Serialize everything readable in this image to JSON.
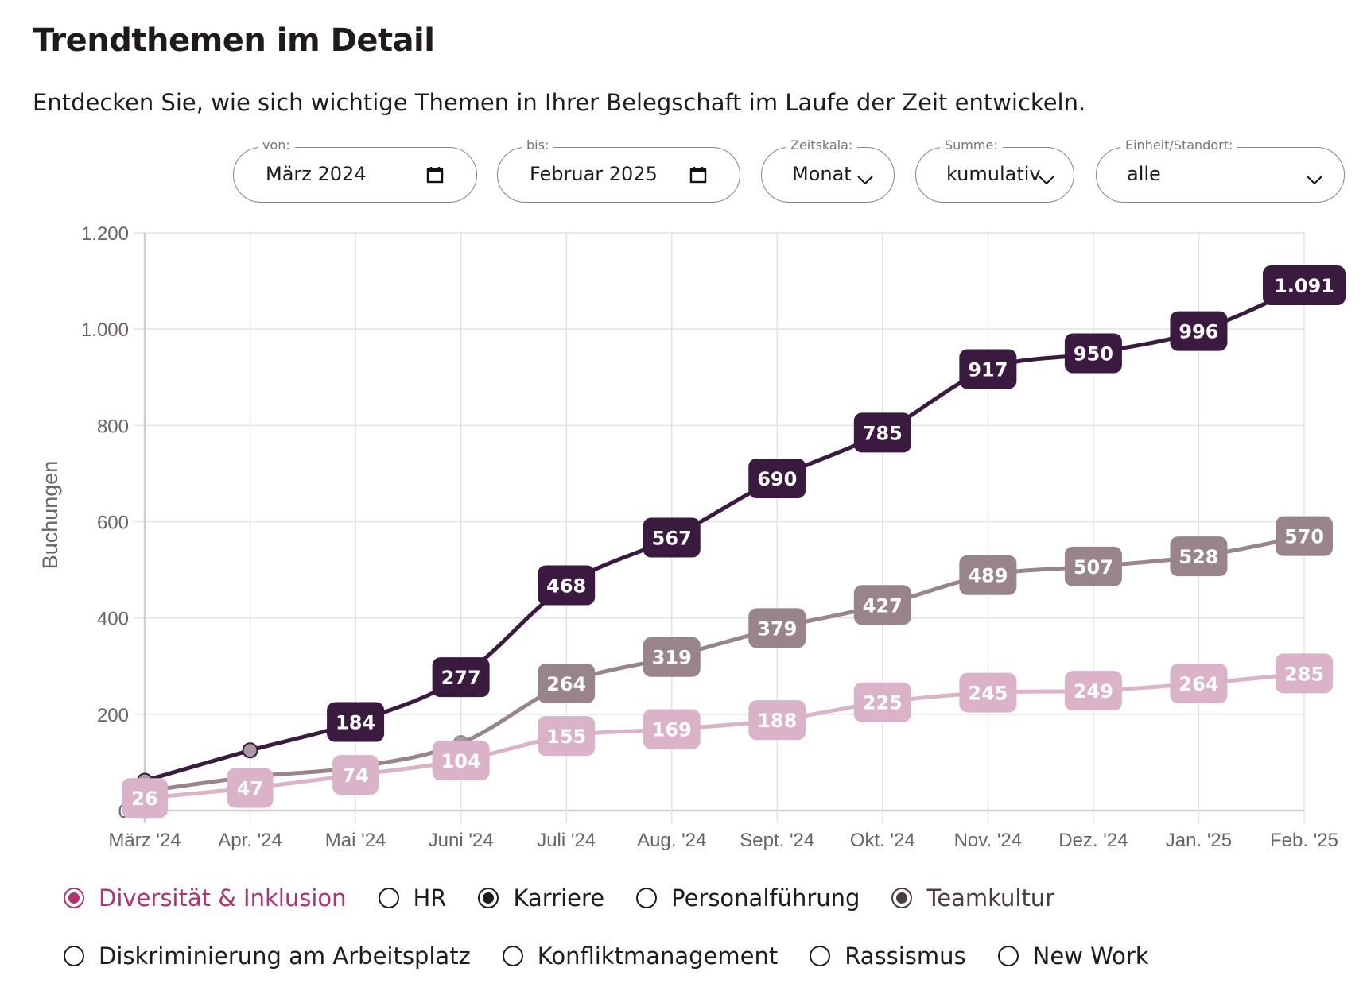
{
  "header": {
    "title": "Trendthemen im Detail",
    "subtitle": "Entdecken Sie, wie sich wichtige Themen in Ihrer Belegschaft im Laufe der Zeit entwickeln."
  },
  "filters": {
    "von": {
      "label": "von:",
      "value": "März 2024",
      "icon": "calendar-icon"
    },
    "bis": {
      "label": "bis:",
      "value": "Februar 2025",
      "icon": "calendar-icon"
    },
    "zeitskala": {
      "label": "Zeitskala:",
      "value": "Monat",
      "icon": "chevron-down-icon"
    },
    "summe": {
      "label": "Summe:",
      "value": "kumulativ",
      "icon": "chevron-down-icon"
    },
    "einheit": {
      "label": "Einheit/Standort:",
      "value": "alle",
      "icon": "chevron-down-icon"
    }
  },
  "legend": {
    "row1": [
      {
        "label": "Diversität & Inklusion",
        "selected": true,
        "color": "#b0336f"
      },
      {
        "label": "HR",
        "selected": false,
        "color": "#1e1a1d"
      },
      {
        "label": "Karriere",
        "selected": true,
        "color": "#1e1a1d"
      },
      {
        "label": "Personalführung",
        "selected": false,
        "color": "#1e1a1d"
      },
      {
        "label": "Teamkultur",
        "selected": true,
        "color": "#4a3b45"
      }
    ],
    "row2": [
      {
        "label": "Diskriminierung am Arbeitsplatz",
        "selected": false,
        "color": "#1e1a1d"
      },
      {
        "label": "Konfliktmanagement",
        "selected": false,
        "color": "#1e1a1d"
      },
      {
        "label": "Rassismus",
        "selected": false,
        "color": "#1e1a1d"
      },
      {
        "label": "New Work",
        "selected": false,
        "color": "#1e1a1d"
      }
    ]
  },
  "chart_data": {
    "type": "line",
    "title": "",
    "xlabel": "",
    "ylabel": "Buchungen",
    "ylim": [
      0,
      1200
    ],
    "yticks": [
      0,
      200,
      400,
      600,
      800,
      1000,
      1200
    ],
    "ytick_labels": [
      "0",
      "200",
      "400",
      "600",
      "800",
      "1.000",
      "1.200"
    ],
    "grid": true,
    "categories": [
      "März '24",
      "Apr. '24",
      "Mai '24",
      "Juni '24",
      "Juli '24",
      "Aug. '24",
      "Sept. '24",
      "Okt. '24",
      "Nov. '24",
      "Dez. '24",
      "Jan. '25",
      "Feb. '25"
    ],
    "series": [
      {
        "name": "Teamkultur",
        "color": "#9a848c",
        "values": [
          40,
          70,
          90,
          140,
          264,
          319,
          379,
          427,
          489,
          507,
          528,
          570
        ],
        "labels": [
          null,
          null,
          null,
          null,
          "264",
          "319",
          "379",
          "427",
          "489",
          "507",
          "528",
          "570"
        ]
      },
      {
        "name": "Diversität & Inklusion",
        "color": "#dab3c8",
        "values": [
          26,
          47,
          74,
          104,
          155,
          169,
          188,
          225,
          245,
          249,
          264,
          285
        ],
        "labels": [
          "26",
          "47",
          "74",
          "104",
          "155",
          "169",
          "188",
          "225",
          "245",
          "249",
          "264",
          "285"
        ]
      },
      {
        "name": "Karriere",
        "color": "#3a1a3e",
        "values": [
          62,
          125,
          184,
          277,
          468,
          567,
          690,
          785,
          917,
          950,
          996,
          1091
        ],
        "labels": [
          null,
          null,
          "184",
          "277",
          "468",
          "567",
          "690",
          "785",
          "917",
          "950",
          "996",
          "1.091"
        ]
      }
    ]
  }
}
